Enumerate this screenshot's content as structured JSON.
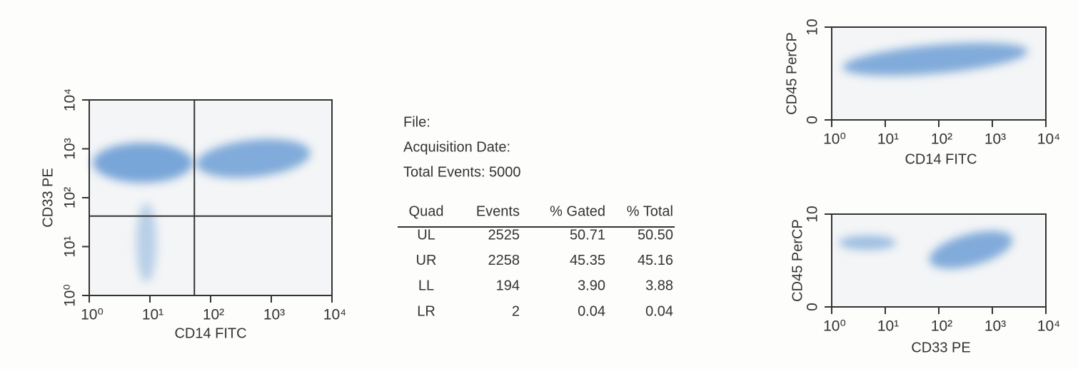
{
  "plots": [
    {
      "type": "scatter",
      "xlabel": "CD14 FITC",
      "ylabel": "CD33 PE",
      "log_x": true,
      "log_y": true,
      "xlim": [
        1,
        10000
      ],
      "xticks": [
        {
          "value": 1,
          "label": "10⁰"
        },
        {
          "value": 10,
          "label": "10¹"
        },
        {
          "value": 100,
          "label": "10²"
        },
        {
          "value": 1000,
          "label": "10³"
        },
        {
          "value": 10000,
          "label": "10⁴"
        }
      ],
      "ylim": [
        1,
        10000
      ],
      "yticks": [
        {
          "value": 1,
          "label": "10⁰"
        },
        {
          "value": 10,
          "label": "10¹"
        },
        {
          "value": 100,
          "label": "10²"
        },
        {
          "value": 1000,
          "label": "10³"
        },
        {
          "value": 10000,
          "label": "10⁴"
        }
      ],
      "quadrant": {
        "x": 54,
        "y": 42
      },
      "color": "#1f6fc4"
    },
    {
      "type": "scatter",
      "xlabel": "CD14 FITC",
      "ylabel": "CD45 PerCP",
      "log_x": true,
      "log_y": false,
      "xlim": [
        1,
        10000
      ],
      "xticks": [
        {
          "value": 1,
          "label": "10⁰"
        },
        {
          "value": 10,
          "label": "10¹"
        },
        {
          "value": 100,
          "label": "10²"
        },
        {
          "value": 1000,
          "label": "10³"
        },
        {
          "value": 10000,
          "label": "10⁴"
        }
      ],
      "ylim": [
        0,
        10
      ],
      "yticks": [
        0,
        10
      ],
      "color": "#1f6fc4"
    },
    {
      "type": "scatter",
      "xlabel": "CD33 PE",
      "ylabel": "CD45 PerCP",
      "log_x": true,
      "log_y": false,
      "xlim": [
        1,
        10000
      ],
      "xticks": [
        {
          "value": 1,
          "label": "10⁰"
        },
        {
          "value": 10,
          "label": "10¹"
        },
        {
          "value": 100,
          "label": "10²"
        },
        {
          "value": 1000,
          "label": "10³"
        },
        {
          "value": 10000,
          "label": "10⁴"
        }
      ],
      "ylim": [
        0,
        10
      ],
      "yticks": [
        0,
        10
      ],
      "color": "#1f6fc4"
    }
  ],
  "info": [
    "File:",
    "Acquisition Date:",
    "Total Events: 5000"
  ],
  "table": {
    "header": [
      "Quad",
      "Events",
      "% Gated",
      "% Total"
    ],
    "rows": [
      [
        "UL",
        "2525",
        "50.71",
        "50.50"
      ],
      [
        "UR",
        "2258",
        "45.35",
        "45.16"
      ],
      [
        "LL",
        "194",
        "3.90",
        "3.88"
      ],
      [
        "LR",
        "2",
        "0.04",
        "0.04"
      ]
    ]
  }
}
